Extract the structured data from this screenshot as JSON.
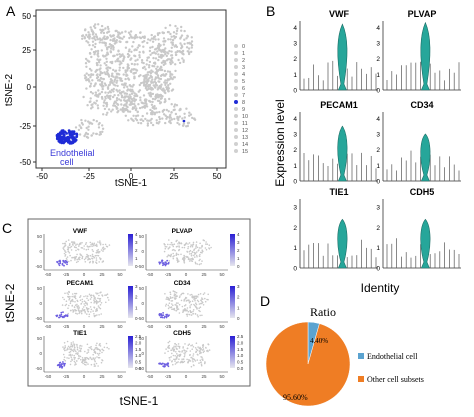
{
  "figure": {
    "panel_a": {
      "letter": "A",
      "xlabel": "tSNE-1",
      "ylabel": "tSNE-2",
      "x_ticks": [
        "-50",
        "-25",
        "0",
        "25",
        "50"
      ],
      "y_ticks": [
        "50",
        "25",
        "0",
        "-25",
        "-50"
      ],
      "cluster_label": "Endothelial\ncell",
      "cluster_label_lines": [
        "Endothelial",
        "cell"
      ],
      "legend": [
        "0",
        "1",
        "2",
        "3",
        "4",
        "5",
        "6",
        "7",
        "8",
        "9",
        "10",
        "11",
        "12",
        "13",
        "14",
        "15"
      ],
      "highlight_cluster": "8",
      "colors": {
        "background_points": "#c8c8c8",
        "highlight": "#1f2bd6",
        "annotation": "#3a3ad8"
      }
    },
    "panel_b": {
      "letter": "B",
      "ylabel": "Expression level",
      "xlabel": "Identity",
      "genes": [
        "VWF",
        "PLVAP",
        "PECAM1",
        "CD34",
        "TIE1",
        "CDH5"
      ],
      "y_ticks": [
        "0",
        "1",
        "2",
        "3",
        "4"
      ],
      "y_ticks_small": [
        "0",
        "1",
        "2",
        "3"
      ],
      "violin_color": "#26a69a"
    },
    "panel_c": {
      "letter": "C",
      "xlabel": "tSNE-1",
      "ylabel": "tSNE-2",
      "genes": [
        "VWF",
        "PLVAP",
        "PECAM1",
        "CD34",
        "TIE1",
        "CDH5"
      ],
      "colorbar_ticks": [
        [
          "4",
          "3",
          "2",
          "1",
          "0"
        ],
        [
          "4",
          "3",
          "2",
          "1",
          "0"
        ],
        [
          "3",
          "2",
          "1",
          "0"
        ],
        [
          "3",
          "2",
          "1",
          "0"
        ],
        [
          "2.5",
          "2.0",
          "1.5",
          "1.0",
          "0.5",
          "0.0"
        ],
        [
          "2.5",
          "2.0",
          "1.5",
          "1.0",
          "0.5",
          "0.0"
        ]
      ],
      "x_ticks": [
        "-50",
        "-25",
        "0",
        "25",
        "50"
      ],
      "y_ticks": [
        "50",
        "0",
        "-50"
      ]
    },
    "panel_d": {
      "letter": "D",
      "chart_data": {
        "type": "pie",
        "title": "Ratio",
        "labels": [
          "Endothelial cell",
          "Other cell subsets"
        ],
        "values": [
          4.4,
          95.6
        ],
        "value_labels": [
          "4.40%",
          "95.60%"
        ],
        "colors": [
          "#5ba3d0",
          "#ef7d24"
        ],
        "legend_position": "right"
      }
    }
  }
}
